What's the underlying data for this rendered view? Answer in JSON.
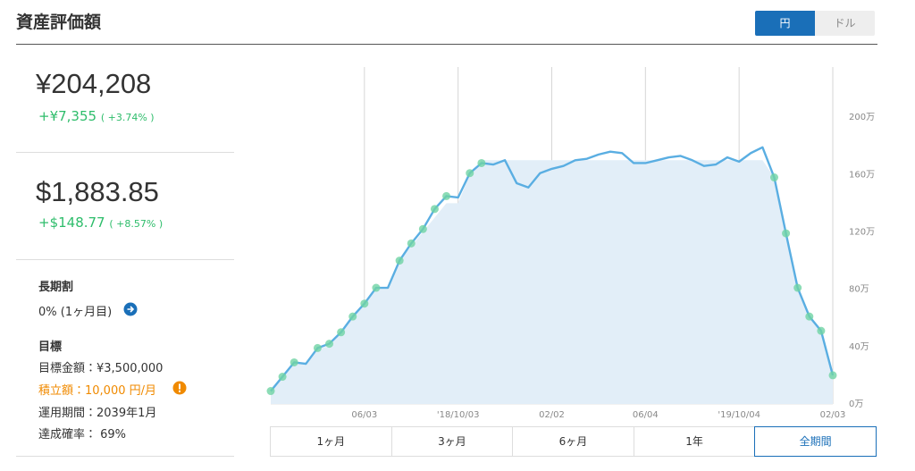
{
  "header": {
    "title": "資産評価額",
    "currency_toggle": [
      "円",
      "ドル"
    ]
  },
  "summary": {
    "jpy": {
      "total": "¥204,208",
      "change": "+¥7,355",
      "change_pct": "( +3.74% )"
    },
    "usd": {
      "total": "$1,883.85",
      "change": "+$148.77",
      "change_pct": "( +8.57% )"
    }
  },
  "discount": {
    "title": "長期割",
    "value": "0% (1ヶ月目)"
  },
  "goal": {
    "title": "目標",
    "amount": "目標金額：¥3,500,000",
    "monthly": "積立額：10,000 円/月",
    "period": "運用期間：2039年1月",
    "probability": "達成確率： 69%"
  },
  "periods": [
    "1ヶ月",
    "3ヶ月",
    "6ヶ月",
    "1年",
    "全期間"
  ],
  "chart_data": {
    "type": "line",
    "categories": [
      null,
      null,
      null,
      null,
      null,
      null,
      null,
      null,
      "06/03",
      null,
      null,
      null,
      null,
      null,
      null,
      null,
      "'18/10/03",
      null,
      null,
      null,
      null,
      null,
      null,
      null,
      "02/02",
      null,
      null,
      null,
      null,
      null,
      null,
      null,
      "06/04",
      null,
      null,
      null,
      null,
      null,
      null,
      null,
      "'19/10/04",
      null,
      null,
      null,
      null,
      null,
      null,
      null,
      "02/03"
    ],
    "series": [
      {
        "color": "#e2eef8",
        "fill": true,
        "values": [
          90000,
          190000,
          290000,
          290000,
          390000,
          400000,
          500000,
          600000,
          700000,
          800000,
          800000,
          1000000,
          1100000,
          1200000,
          1300000,
          1400000,
          1400000,
          1600000,
          1700000,
          1700000,
          1700000,
          1700000,
          1700000,
          1700000,
          1700000,
          1700000,
          1700000,
          1700000,
          1700000,
          1700000,
          1700000,
          1700000,
          1700000,
          1700000,
          1700000,
          1700000,
          1700000,
          1700000,
          1700000,
          1700000,
          1700000,
          1700000,
          1700000,
          1580000,
          1190000,
          810000,
          610000,
          510000,
          200000
        ]
      },
      {
        "color": "#5aaee2",
        "fill": false,
        "values": [
          90000,
          190000,
          290000,
          280000,
          390000,
          420000,
          500000,
          610000,
          700000,
          810000,
          810000,
          1000000,
          1120000,
          1220000,
          1360000,
          1450000,
          1440000,
          1610000,
          1680000,
          1670000,
          1700000,
          1540000,
          1510000,
          1610000,
          1640000,
          1660000,
          1700000,
          1710000,
          1740000,
          1760000,
          1750000,
          1680000,
          1680000,
          1700000,
          1720000,
          1730000,
          1700000,
          1660000,
          1670000,
          1720000,
          1690000,
          1750000,
          1790000,
          1580000,
          1190000,
          810000,
          610000,
          510000,
          200000
        ]
      }
    ],
    "marker_color": "#6fd3a4",
    "ylim": [
      0,
      2350000
    ],
    "yticks": [
      {
        "value": 0,
        "label": "0万"
      },
      {
        "value": 400000,
        "label": "40万"
      },
      {
        "value": 800000,
        "label": "80万"
      },
      {
        "value": 1200000,
        "label": "120万"
      },
      {
        "value": 1600000,
        "label": "160万"
      },
      {
        "value": 2000000,
        "label": "200万"
      }
    ],
    "grid": true
  }
}
